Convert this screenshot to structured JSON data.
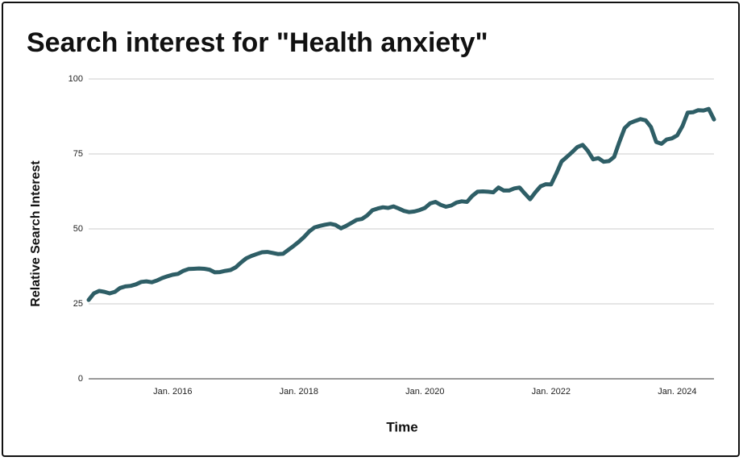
{
  "chart_data": {
    "type": "line",
    "title": "Search interest for \"Health anxiety\"",
    "x_label": "Time",
    "y_label": "Relative Search Interest",
    "color": "#2e5e66",
    "grid": true,
    "x": [
      "2014-09",
      "2014-10",
      "2014-11",
      "2014-12",
      "2015-01",
      "2015-02",
      "2015-03",
      "2015-04",
      "2015-05",
      "2015-06",
      "2015-07",
      "2015-08",
      "2015-09",
      "2015-10",
      "2015-11",
      "2015-12",
      "2016-01",
      "2016-02",
      "2016-03",
      "2016-04",
      "2016-05",
      "2016-06",
      "2016-07",
      "2016-08",
      "2016-09",
      "2016-10",
      "2016-11",
      "2016-12",
      "2017-01",
      "2017-02",
      "2017-03",
      "2017-04",
      "2017-05",
      "2017-06",
      "2017-07",
      "2017-08",
      "2017-09",
      "2017-10",
      "2017-11",
      "2017-12",
      "2018-01",
      "2018-02",
      "2018-03",
      "2018-04",
      "2018-05",
      "2018-06",
      "2018-07",
      "2018-08",
      "2018-09",
      "2018-10",
      "2018-11",
      "2018-12",
      "2019-01",
      "2019-02",
      "2019-03",
      "2019-04",
      "2019-05",
      "2019-06",
      "2019-07",
      "2019-08",
      "2019-09",
      "2019-10",
      "2019-11",
      "2019-12",
      "2020-01",
      "2020-02",
      "2020-03",
      "2020-04",
      "2020-05",
      "2020-06",
      "2020-07",
      "2020-08",
      "2020-09",
      "2020-10",
      "2020-11",
      "2020-12",
      "2021-01",
      "2021-02",
      "2021-03",
      "2021-04",
      "2021-05",
      "2021-06",
      "2021-07",
      "2021-08",
      "2021-09",
      "2021-10",
      "2021-11",
      "2021-12",
      "2022-01",
      "2022-02",
      "2022-03",
      "2022-04",
      "2022-05",
      "2022-06",
      "2022-07",
      "2022-08",
      "2022-09",
      "2022-10",
      "2022-11",
      "2022-12",
      "2023-01",
      "2023-02",
      "2023-03",
      "2023-04",
      "2023-05",
      "2023-06",
      "2023-07",
      "2023-08",
      "2023-09",
      "2023-10",
      "2023-11",
      "2023-12",
      "2024-01",
      "2024-02",
      "2024-03",
      "2024-04",
      "2024-05",
      "2024-06",
      "2024-07",
      "2024-08"
    ],
    "values": [
      26.3,
      28.5,
      29.3,
      29.0,
      28.5,
      29.0,
      30.3,
      30.8,
      31.0,
      31.5,
      32.3,
      32.5,
      32.2,
      32.8,
      33.6,
      34.2,
      34.7,
      35.0,
      36.0,
      36.6,
      36.7,
      36.8,
      36.7,
      36.4,
      35.5,
      35.6,
      36.0,
      36.3,
      37.2,
      38.8,
      40.2,
      41.0,
      41.6,
      42.2,
      42.3,
      42.0,
      41.6,
      41.7,
      43.0,
      44.3,
      45.7,
      47.3,
      49.2,
      50.5,
      51.0,
      51.4,
      51.7,
      51.3,
      50.2,
      51.0,
      52.0,
      53.0,
      53.3,
      54.5,
      56.2,
      56.8,
      57.2,
      57.0,
      57.5,
      56.8,
      56.0,
      55.6,
      55.8,
      56.3,
      57.0,
      58.5,
      59.0,
      58.0,
      57.4,
      57.8,
      58.8,
      59.2,
      59.0,
      61.0,
      62.4,
      62.5,
      62.4,
      62.2,
      63.8,
      62.8,
      62.8,
      63.5,
      63.8,
      61.8,
      59.9,
      62.2,
      64.2,
      64.9,
      64.8,
      68.5,
      72.5,
      74.0,
      75.6,
      77.3,
      78.0,
      76.0,
      73.2,
      73.6,
      72.4,
      72.6,
      74.0,
      79.0,
      83.6,
      85.3,
      86.0,
      86.6,
      86.2,
      84.0,
      79.0,
      78.4,
      79.8,
      80.2,
      81.2,
      84.3,
      88.8,
      88.9,
      89.6,
      89.5,
      90.0,
      86.5
    ],
    "xlim": [
      "2014-09",
      "2024-08"
    ],
    "xticks": [
      {
        "value": "2016-01",
        "label": "Jan. 2016"
      },
      {
        "value": "2018-01",
        "label": "Jan. 2018"
      },
      {
        "value": "2020-01",
        "label": "Jan. 2020"
      },
      {
        "value": "2022-01",
        "label": "Jan. 2022"
      },
      {
        "value": "2024-01",
        "label": "Jan. 2024"
      }
    ],
    "ylim": [
      0,
      100
    ],
    "yticks": [
      0,
      25,
      50,
      75,
      100
    ]
  }
}
